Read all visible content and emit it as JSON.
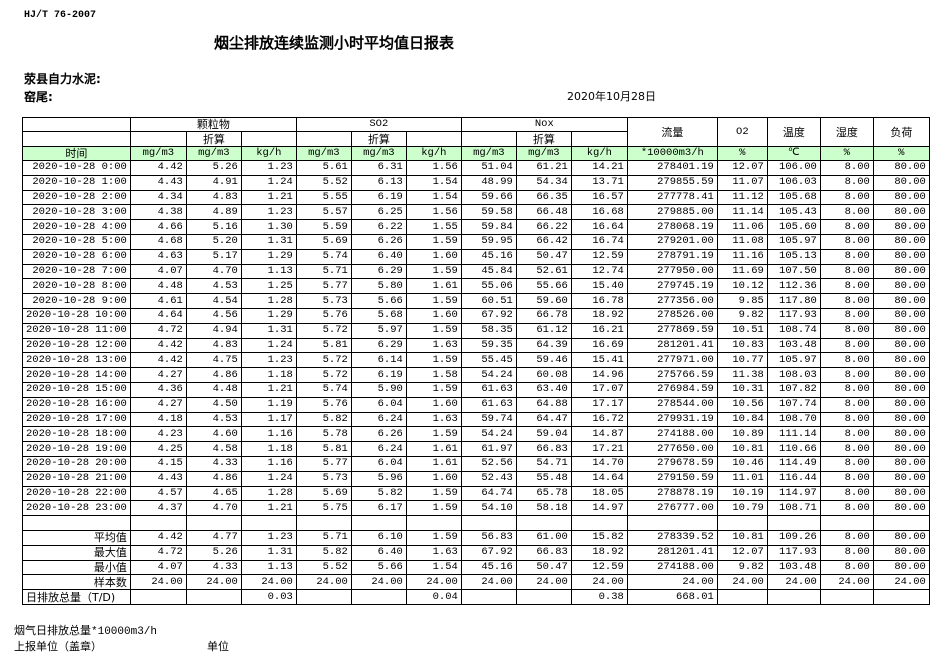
{
  "header": {
    "standard": "HJ/T  76-2007",
    "title": "烟尘排放连续监测小时平均值日报表",
    "company": "荥县自力水泥:",
    "kiln": "窑尾:",
    "date": "2020年10月28日"
  },
  "columns": {
    "groups": [
      "颗粒物",
      "SO2",
      "Nox"
    ],
    "converted": "折算",
    "flow": "流量",
    "o2": "O2",
    "temperature": "温度",
    "humidity": "湿度",
    "load": "负荷",
    "time": "时间",
    "units": [
      "mg/m3",
      "mg/m3",
      "kg/h",
      "mg/m3",
      "mg/m3",
      "kg/h",
      "mg/m3",
      "mg/m3",
      "kg/h",
      "*10000m3/h",
      "%",
      "℃",
      "%",
      "%"
    ]
  },
  "colors": {
    "unit_row_bg": "#ccffcc",
    "border": "#000000"
  },
  "rows": [
    [
      "2020-10-28 0:00",
      "4.42",
      "5.26",
      "1.23",
      "5.61",
      "6.31",
      "1.56",
      "51.04",
      "61.21",
      "14.21",
      "278401.19",
      "12.07",
      "106.00",
      "8.00",
      "80.00"
    ],
    [
      "2020-10-28 1:00",
      "4.43",
      "4.91",
      "1.24",
      "5.52",
      "6.13",
      "1.54",
      "48.99",
      "54.34",
      "13.71",
      "279855.59",
      "11.07",
      "106.03",
      "8.00",
      "80.00"
    ],
    [
      "2020-10-28 2:00",
      "4.34",
      "4.83",
      "1.21",
      "5.55",
      "6.19",
      "1.54",
      "59.66",
      "66.35",
      "16.57",
      "277778.41",
      "11.12",
      "105.68",
      "8.00",
      "80.00"
    ],
    [
      "2020-10-28 3:00",
      "4.38",
      "4.89",
      "1.23",
      "5.57",
      "6.25",
      "1.56",
      "59.58",
      "66.48",
      "16.68",
      "279885.00",
      "11.14",
      "105.43",
      "8.00",
      "80.00"
    ],
    [
      "2020-10-28 4:00",
      "4.66",
      "5.16",
      "1.30",
      "5.59",
      "6.22",
      "1.55",
      "59.84",
      "66.22",
      "16.64",
      "278068.19",
      "11.06",
      "105.60",
      "8.00",
      "80.00"
    ],
    [
      "2020-10-28 5:00",
      "4.68",
      "5.20",
      "1.31",
      "5.69",
      "6.26",
      "1.59",
      "59.95",
      "66.42",
      "16.74",
      "279201.00",
      "11.08",
      "105.97",
      "8.00",
      "80.00"
    ],
    [
      "2020-10-28 6:00",
      "4.63",
      "5.17",
      "1.29",
      "5.74",
      "6.40",
      "1.60",
      "45.16",
      "50.47",
      "12.59",
      "278791.19",
      "11.16",
      "105.13",
      "8.00",
      "80.00"
    ],
    [
      "2020-10-28 7:00",
      "4.07",
      "4.70",
      "1.13",
      "5.71",
      "6.29",
      "1.59",
      "45.84",
      "52.61",
      "12.74",
      "277950.00",
      "11.69",
      "107.50",
      "8.00",
      "80.00"
    ],
    [
      "2020-10-28 8:00",
      "4.48",
      "4.53",
      "1.25",
      "5.77",
      "5.80",
      "1.61",
      "55.06",
      "55.66",
      "15.40",
      "279745.19",
      "10.12",
      "112.36",
      "8.00",
      "80.00"
    ],
    [
      "2020-10-28 9:00",
      "4.61",
      "4.54",
      "1.28",
      "5.73",
      "5.66",
      "1.59",
      "60.51",
      "59.60",
      "16.78",
      "277356.00",
      "9.85",
      "117.80",
      "8.00",
      "80.00"
    ],
    [
      "2020-10-28 10:00",
      "4.64",
      "4.56",
      "1.29",
      "5.76",
      "5.68",
      "1.60",
      "67.92",
      "66.78",
      "18.92",
      "278526.00",
      "9.82",
      "117.93",
      "8.00",
      "80.00"
    ],
    [
      "2020-10-28 11:00",
      "4.72",
      "4.94",
      "1.31",
      "5.72",
      "5.97",
      "1.59",
      "58.35",
      "61.12",
      "16.21",
      "277869.59",
      "10.51",
      "108.74",
      "8.00",
      "80.00"
    ],
    [
      "2020-10-28 12:00",
      "4.42",
      "4.83",
      "1.24",
      "5.81",
      "6.29",
      "1.63",
      "59.35",
      "64.39",
      "16.69",
      "281201.41",
      "10.83",
      "103.48",
      "8.00",
      "80.00"
    ],
    [
      "2020-10-28 13:00",
      "4.42",
      "4.75",
      "1.23",
      "5.72",
      "6.14",
      "1.59",
      "55.45",
      "59.46",
      "15.41",
      "277971.00",
      "10.77",
      "105.97",
      "8.00",
      "80.00"
    ],
    [
      "2020-10-28 14:00",
      "4.27",
      "4.86",
      "1.18",
      "5.72",
      "6.19",
      "1.58",
      "54.24",
      "60.08",
      "14.96",
      "275766.59",
      "11.38",
      "108.03",
      "8.00",
      "80.00"
    ],
    [
      "2020-10-28 15:00",
      "4.36",
      "4.48",
      "1.21",
      "5.74",
      "5.90",
      "1.59",
      "61.63",
      "63.40",
      "17.07",
      "276984.59",
      "10.31",
      "107.82",
      "8.00",
      "80.00"
    ],
    [
      "2020-10-28 16:00",
      "4.27",
      "4.50",
      "1.19",
      "5.76",
      "6.04",
      "1.60",
      "61.63",
      "64.88",
      "17.17",
      "278544.00",
      "10.56",
      "107.74",
      "8.00",
      "80.00"
    ],
    [
      "2020-10-28 17:00",
      "4.18",
      "4.53",
      "1.17",
      "5.82",
      "6.24",
      "1.63",
      "59.74",
      "64.47",
      "16.72",
      "279931.19",
      "10.84",
      "108.70",
      "8.00",
      "80.00"
    ],
    [
      "2020-10-28 18:00",
      "4.23",
      "4.60",
      "1.16",
      "5.78",
      "6.26",
      "1.59",
      "54.24",
      "59.04",
      "14.87",
      "274188.00",
      "10.89",
      "111.14",
      "8.00",
      "80.00"
    ],
    [
      "2020-10-28 19:00",
      "4.25",
      "4.58",
      "1.18",
      "5.81",
      "6.24",
      "1.61",
      "61.97",
      "66.83",
      "17.21",
      "277650.00",
      "10.81",
      "110.66",
      "8.00",
      "80.00"
    ],
    [
      "2020-10-28 20:00",
      "4.15",
      "4.33",
      "1.16",
      "5.77",
      "6.04",
      "1.61",
      "52.56",
      "54.71",
      "14.70",
      "279678.59",
      "10.46",
      "114.49",
      "8.00",
      "80.00"
    ],
    [
      "2020-10-28 21:00",
      "4.43",
      "4.86",
      "1.24",
      "5.73",
      "5.96",
      "1.60",
      "52.43",
      "55.48",
      "14.64",
      "279150.59",
      "11.01",
      "116.44",
      "8.00",
      "80.00"
    ],
    [
      "2020-10-28 22:00",
      "4.57",
      "4.65",
      "1.28",
      "5.69",
      "5.82",
      "1.59",
      "64.74",
      "65.78",
      "18.05",
      "278878.19",
      "10.19",
      "114.97",
      "8.00",
      "80.00"
    ],
    [
      "2020-10-28 23:00",
      "4.37",
      "4.70",
      "1.21",
      "5.75",
      "6.17",
      "1.59",
      "54.10",
      "58.18",
      "14.97",
      "276777.00",
      "10.79",
      "108.71",
      "8.00",
      "80.00"
    ]
  ],
  "summary": [
    [
      "平均值",
      "4.42",
      "4.77",
      "1.23",
      "5.71",
      "6.10",
      "1.59",
      "56.83",
      "61.00",
      "15.82",
      "278339.52",
      "10.81",
      "109.26",
      "8.00",
      "80.00"
    ],
    [
      "最大值",
      "4.72",
      "5.26",
      "1.31",
      "5.82",
      "6.40",
      "1.63",
      "67.92",
      "66.83",
      "18.92",
      "281201.41",
      "12.07",
      "117.93",
      "8.00",
      "80.00"
    ],
    [
      "最小值",
      "4.07",
      "4.33",
      "1.13",
      "5.52",
      "5.66",
      "1.54",
      "45.16",
      "50.47",
      "12.59",
      "274188.00",
      "9.82",
      "103.48",
      "8.00",
      "80.00"
    ],
    [
      "样本数",
      "24.00",
      "24.00",
      "24.00",
      "24.00",
      "24.00",
      "24.00",
      "24.00",
      "24.00",
      "24.00",
      "24.00",
      "24.00",
      "24.00",
      "24.00",
      "24.00"
    ],
    [
      "日排放总量（T/D)",
      "",
      "",
      "0.03",
      "",
      "",
      "0.04",
      "",
      "",
      "0.38",
      "668.01",
      "",
      "",
      "",
      ""
    ]
  ],
  "footer": {
    "flue_gas_total": "烟气日排放总量*10000m3/h",
    "reporting_unit": "上报单位（盖章）",
    "unit": "单位"
  }
}
